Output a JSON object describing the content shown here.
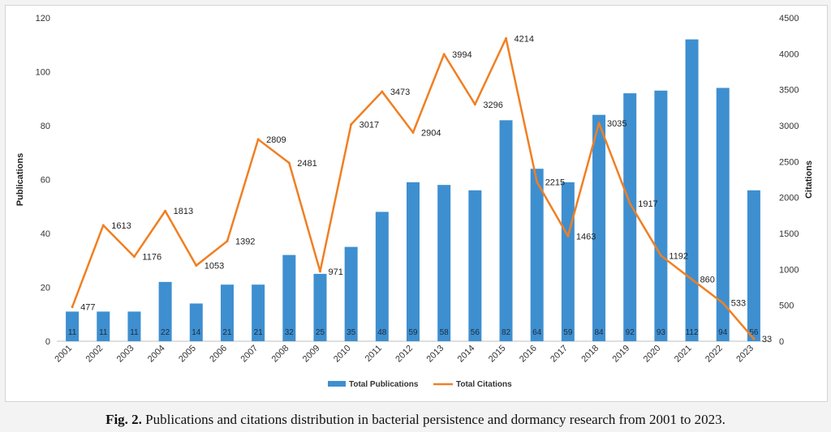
{
  "caption": {
    "label": "Fig. 2.",
    "text": "Publications and citations distribution in bacterial persistence and dormancy research from 2001 to 2023."
  },
  "chart_data": {
    "type": "bar",
    "title": "",
    "categories": [
      "2001",
      "2002",
      "2003",
      "2004",
      "2005",
      "2006",
      "2007",
      "2008",
      "2009",
      "2010",
      "2011",
      "2012",
      "2013",
      "2014",
      "2015",
      "2016",
      "2017",
      "2018",
      "2019",
      "2020",
      "2021",
      "2022",
      "2023"
    ],
    "series": [
      {
        "name": "Total Publications",
        "type": "bar",
        "axis": "left",
        "color": "#3e8fd0",
        "values": [
          11,
          11,
          11,
          22,
          14,
          21,
          21,
          32,
          25,
          35,
          48,
          59,
          58,
          56,
          82,
          64,
          59,
          84,
          92,
          93,
          112,
          94,
          56
        ]
      },
      {
        "name": "Total Citations",
        "type": "line",
        "axis": "right",
        "color": "#f07f22",
        "values": [
          477,
          1613,
          1176,
          1813,
          1053,
          1392,
          2809,
          2481,
          971,
          3017,
          3473,
          2904,
          3994,
          3296,
          4214,
          2215,
          1463,
          3035,
          1917,
          1192,
          860,
          533,
          33
        ]
      }
    ],
    "ylabel": "Publications",
    "ylabel_right": "Citations",
    "ylim": [
      0,
      120
    ],
    "ylim_right": [
      0,
      4500
    ],
    "yticks": [
      0,
      20,
      40,
      60,
      80,
      100,
      120
    ],
    "yticks_right": [
      0,
      500,
      1000,
      1500,
      2000,
      2500,
      3000,
      3500,
      4000,
      4500
    ],
    "grid": false,
    "legend": "bottom"
  }
}
